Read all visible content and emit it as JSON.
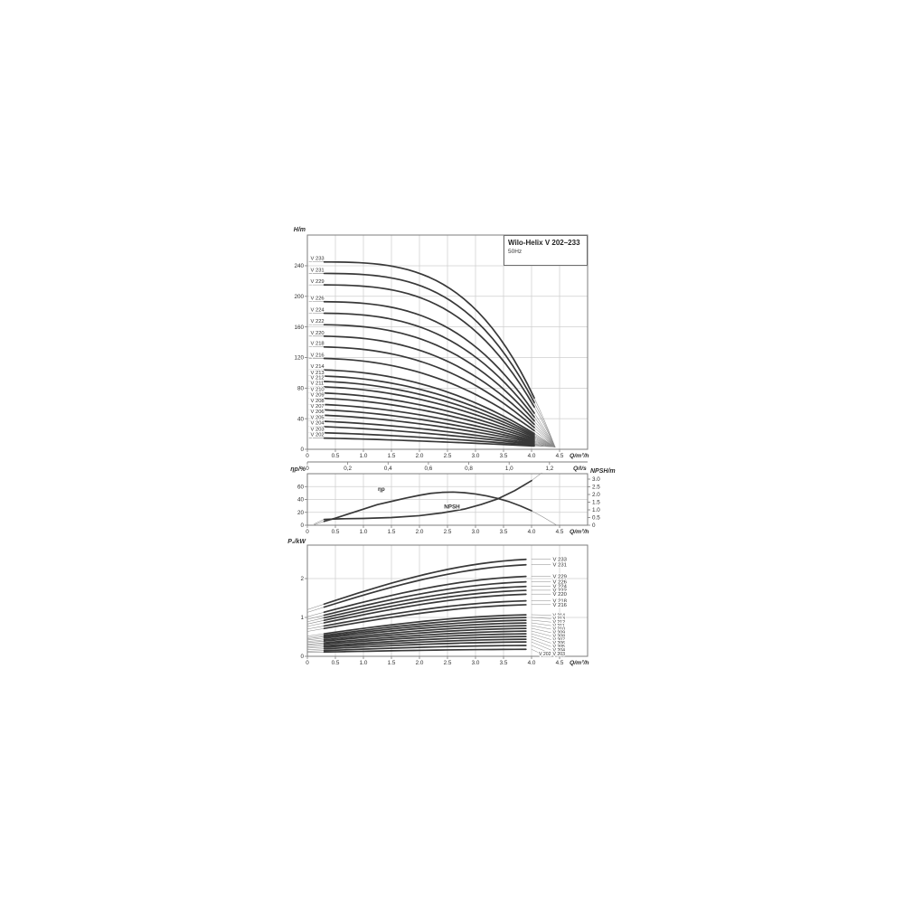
{
  "title_box": {
    "title": "Wilo-Helix V 202–233",
    "frequency": "50Hz"
  },
  "chart_data": [
    {
      "id": "head_curves",
      "type": "line",
      "title": "Wilo-Helix V 202–233",
      "subtitle": "50Hz",
      "ylabel": "H/m",
      "xlabel": "Q/m³/h",
      "x2label": "Q/l/s",
      "xlim": [
        0,
        5.0
      ],
      "ylim": [
        0,
        280
      ],
      "grid": true,
      "xticks": [
        [
          0,
          "0"
        ],
        [
          0.5,
          "0.5"
        ],
        [
          1,
          "1.0"
        ],
        [
          1.5,
          "1.5"
        ],
        [
          2,
          "2.0"
        ],
        [
          2.5,
          "2.5"
        ],
        [
          3,
          "3.0"
        ],
        [
          3.5,
          "3.5"
        ],
        [
          4,
          "4.0"
        ],
        [
          4.5,
          "4.5"
        ]
      ],
      "yticks": [
        [
          0,
          "0"
        ],
        [
          40,
          "40"
        ],
        [
          80,
          "80"
        ],
        [
          120,
          "120"
        ],
        [
          160,
          "160"
        ],
        [
          200,
          "200"
        ],
        [
          240,
          "240"
        ]
      ],
      "x2ticks": [
        [
          0,
          "0"
        ],
        [
          0.2,
          "0,2"
        ],
        [
          0.4,
          "0,4"
        ],
        [
          0.6,
          "0,6"
        ],
        [
          0.8,
          "0,8"
        ],
        [
          1.0,
          "1,0"
        ],
        [
          1.2,
          "1,2"
        ]
      ],
      "x2_to_x_factor": 3.6,
      "curve_model": {
        "q_convergence_m3h": 4.42,
        "h_convergence_m": 3,
        "q_thick_start": 0.3,
        "q_thick_end": 4.05
      },
      "series": [
        {
          "label": "V 233",
          "stages": 33,
          "h0_m": 245
        },
        {
          "label": "V 231",
          "stages": 31,
          "h0_m": 230
        },
        {
          "label": "V 229",
          "stages": 29,
          "h0_m": 215
        },
        {
          "label": "V 226",
          "stages": 26,
          "h0_m": 193
        },
        {
          "label": "V 224",
          "stages": 24,
          "h0_m": 178
        },
        {
          "label": "V 222",
          "stages": 22,
          "h0_m": 163
        },
        {
          "label": "V 220",
          "stages": 20,
          "h0_m": 148
        },
        {
          "label": "V 218",
          "stages": 18,
          "h0_m": 134
        },
        {
          "label": "V 216",
          "stages": 16,
          "h0_m": 119
        },
        {
          "label": "V 214",
          "stages": 14,
          "h0_m": 104
        },
        {
          "label": "V 213",
          "stages": 13,
          "h0_m": 96
        },
        {
          "label": "V 212",
          "stages": 12,
          "h0_m": 89
        },
        {
          "label": "V 211",
          "stages": 11,
          "h0_m": 82
        },
        {
          "label": "V 210",
          "stages": 10,
          "h0_m": 74
        },
        {
          "label": "V 209",
          "stages": 9,
          "h0_m": 67
        },
        {
          "label": "V 208",
          "stages": 8,
          "h0_m": 59
        },
        {
          "label": "V 207",
          "stages": 7,
          "h0_m": 52
        },
        {
          "label": "V 206",
          "stages": 6,
          "h0_m": 45
        },
        {
          "label": "V 205",
          "stages": 5,
          "h0_m": 37
        },
        {
          "label": "V 204",
          "stages": 4,
          "h0_m": 30
        },
        {
          "label": "V 203",
          "stages": 3,
          "h0_m": 22
        },
        {
          "label": "V 202",
          "stages": 2,
          "h0_m": 15
        }
      ]
    },
    {
      "id": "efficiency_npsh",
      "type": "line",
      "ylabel_left": "ηp/%",
      "ylabel_right": "NPSH/m",
      "xlabel": "Q/m³/h",
      "xlim": [
        0,
        5.0
      ],
      "ylim_left": [
        0,
        80
      ],
      "ylim_right": [
        0,
        3.35
      ],
      "grid": true,
      "xticks": [
        [
          0,
          "0"
        ],
        [
          0.5,
          "0.5"
        ],
        [
          1,
          "1.0"
        ],
        [
          1.5,
          "1.5"
        ],
        [
          2,
          "2.0"
        ],
        [
          2.5,
          "2.5"
        ],
        [
          3,
          "3.0"
        ],
        [
          3.5,
          "3.5"
        ],
        [
          4,
          "4.0"
        ],
        [
          4.5,
          "4.5"
        ]
      ],
      "yticks_left": [
        [
          0,
          "0"
        ],
        [
          20,
          "20"
        ],
        [
          40,
          "40"
        ],
        [
          60,
          "60"
        ]
      ],
      "yticks_right": [
        [
          0,
          "0"
        ],
        [
          0.5,
          "0.5"
        ],
        [
          1,
          "1.0"
        ],
        [
          1.5,
          "1.5"
        ],
        [
          2,
          "2.0"
        ],
        [
          2.5,
          "2.5"
        ],
        [
          3,
          "3.0"
        ]
      ],
      "series": [
        {
          "label": "ηp",
          "axis": "left",
          "thick_range": [
            0.3,
            4.0
          ],
          "label_pos": [
            1.32,
            49
          ],
          "points": [
            [
              0.1,
              0
            ],
            [
              0.3,
              6
            ],
            [
              0.5,
              11
            ],
            [
              0.75,
              18
            ],
            [
              1.0,
              25
            ],
            [
              1.25,
              32
            ],
            [
              1.5,
              37
            ],
            [
              1.75,
              42
            ],
            [
              2.0,
              46.5
            ],
            [
              2.2,
              49.5
            ],
            [
              2.4,
              51
            ],
            [
              2.6,
              51.5
            ],
            [
              2.8,
              50.5
            ],
            [
              3.0,
              48.5
            ],
            [
              3.2,
              45.5
            ],
            [
              3.4,
              41.5
            ],
            [
              3.6,
              36.5
            ],
            [
              3.8,
              30
            ],
            [
              4.0,
              22.5
            ],
            [
              4.2,
              13
            ],
            [
              4.45,
              0
            ]
          ]
        },
        {
          "label": "NPSH",
          "axis": "right",
          "thick_range": [
            0.3,
            4.0
          ],
          "label_pos": [
            2.58,
            0.92
          ],
          "points": [
            [
              0.12,
              0.08
            ],
            [
              0.3,
              0.38
            ],
            [
              0.6,
              0.42
            ],
            [
              1.0,
              0.44
            ],
            [
              1.5,
              0.5
            ],
            [
              2.0,
              0.62
            ],
            [
              2.4,
              0.8
            ],
            [
              2.8,
              1.05
            ],
            [
              3.1,
              1.35
            ],
            [
              3.4,
              1.72
            ],
            [
              3.7,
              2.25
            ],
            [
              4.0,
              2.9
            ],
            [
              4.18,
              3.4
            ]
          ]
        }
      ]
    },
    {
      "id": "power_curves",
      "type": "line",
      "ylabel": "P₂/kW",
      "xlabel": "Q/m³/h",
      "xlim": [
        0,
        5.0
      ],
      "ylim": [
        0,
        2.86
      ],
      "grid": true,
      "xticks": [
        [
          0,
          "0"
        ],
        [
          0.5,
          "0.5"
        ],
        [
          1,
          "1.0"
        ],
        [
          1.5,
          "1.5"
        ],
        [
          2,
          "2.0"
        ],
        [
          2.5,
          "2.5"
        ],
        [
          3,
          "3.0"
        ],
        [
          3.5,
          "3.5"
        ],
        [
          4,
          "4.0"
        ],
        [
          4.5,
          "4.5"
        ]
      ],
      "yticks": [
        [
          0,
          "0"
        ],
        [
          1,
          "1"
        ],
        [
          2,
          "2"
        ]
      ],
      "curve_model": {
        "q_thick_start": 0.3,
        "q_thick_end": 4.0
      },
      "series": [
        {
          "label": "V 233",
          "p_kw_q0": 1.2,
          "p_kw_q4": 2.5
        },
        {
          "label": "V 231",
          "p_kw_q0": 1.13,
          "p_kw_q4": 2.36
        },
        {
          "label": "V 229",
          "p_kw_q0": 1.02,
          "p_kw_q4": 2.06
        },
        {
          "label": "V 226",
          "p_kw_q0": 0.95,
          "p_kw_q4": 1.92
        },
        {
          "label": "V 224",
          "p_kw_q0": 0.89,
          "p_kw_q4": 1.8
        },
        {
          "label": "V 222",
          "p_kw_q0": 0.83,
          "p_kw_q4": 1.7
        },
        {
          "label": "V 220",
          "p_kw_q0": 0.77,
          "p_kw_q4": 1.6
        },
        {
          "label": "V 218",
          "p_kw_q0": 0.7,
          "p_kw_q4": 1.43
        },
        {
          "label": "V 216",
          "p_kw_q0": 0.64,
          "p_kw_q4": 1.33
        },
        {
          "label": "V 214",
          "p_kw_q0": 0.52,
          "p_kw_q4": 1.07
        },
        {
          "label": "V 213",
          "p_kw_q0": 0.48,
          "p_kw_q4": 1.0
        },
        {
          "label": "V 212",
          "p_kw_q0": 0.45,
          "p_kw_q4": 0.93
        },
        {
          "label": "V 211",
          "p_kw_q0": 0.42,
          "p_kw_q4": 0.86
        },
        {
          "label": "V 210",
          "p_kw_q0": 0.38,
          "p_kw_q4": 0.79
        },
        {
          "label": "V 209",
          "p_kw_q0": 0.35,
          "p_kw_q4": 0.72
        },
        {
          "label": "V 208",
          "p_kw_q0": 0.31,
          "p_kw_q4": 0.65
        },
        {
          "label": "V 207",
          "p_kw_q0": 0.28,
          "p_kw_q4": 0.58
        },
        {
          "label": "V 206",
          "p_kw_q0": 0.24,
          "p_kw_q4": 0.51
        },
        {
          "label": "V 205",
          "p_kw_q0": 0.21,
          "p_kw_q4": 0.44
        },
        {
          "label": "V 204",
          "p_kw_q0": 0.17,
          "p_kw_q4": 0.37
        },
        {
          "label": "V 203",
          "p_kw_q0": 0.13,
          "p_kw_q4": 0.28
        },
        {
          "label": "V 202",
          "p_kw_q0": 0.1,
          "p_kw_q4": 0.18
        }
      ]
    }
  ]
}
